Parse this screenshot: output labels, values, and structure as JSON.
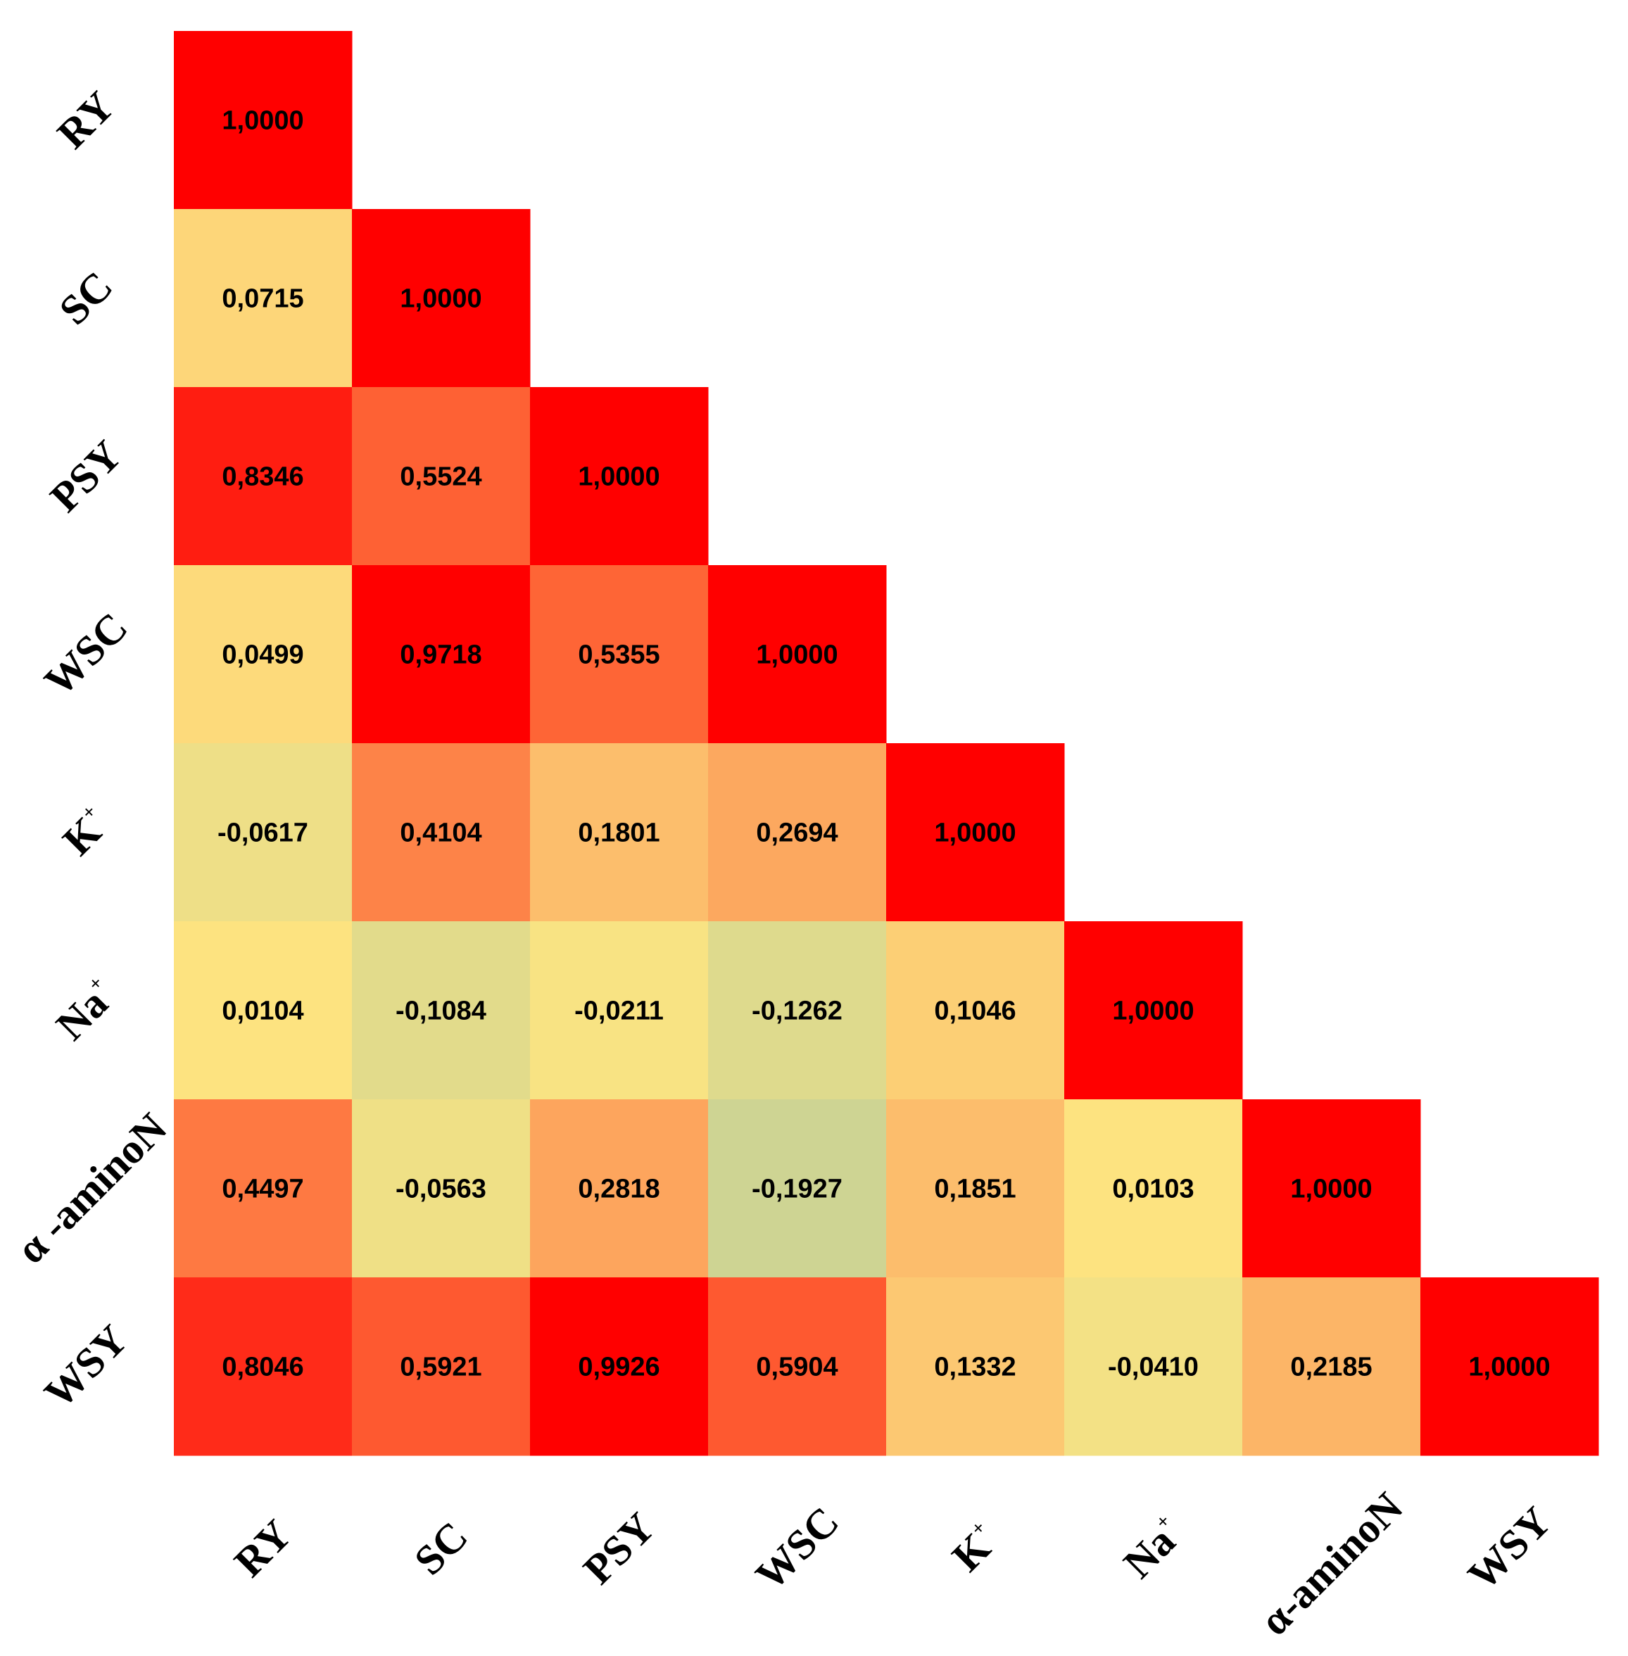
{
  "chart_data": {
    "type": "heatmap",
    "subtype": "lower-triangular correlation matrix",
    "variables": [
      {
        "base": "RY",
        "sup": ""
      },
      {
        "base": "SC",
        "sup": ""
      },
      {
        "base": "PSY",
        "sup": ""
      },
      {
        "base": "WSC",
        "sup": ""
      },
      {
        "base": "K",
        "sup": "+"
      },
      {
        "base": "Na",
        "sup": "+"
      },
      {
        "base": "α -aminoN",
        "sup": ""
      },
      {
        "base": "WSY",
        "sup": ""
      }
    ],
    "x_labels": [
      {
        "base": "RY",
        "sup": ""
      },
      {
        "base": "SC",
        "sup": ""
      },
      {
        "base": "PSY",
        "sup": ""
      },
      {
        "base": "WSC",
        "sup": ""
      },
      {
        "base": "K",
        "sup": "+"
      },
      {
        "base": "Na",
        "sup": "+"
      },
      {
        "base": "α-aminoN",
        "sup": ""
      },
      {
        "base": "WSY",
        "sup": ""
      }
    ],
    "values": [
      [
        1.0
      ],
      [
        0.0715,
        1.0
      ],
      [
        0.8346,
        0.5524,
        1.0
      ],
      [
        0.0499,
        0.9718,
        0.5355,
        1.0
      ],
      [
        -0.0617,
        0.4104,
        0.1801,
        0.2694,
        1.0
      ],
      [
        0.0104,
        -0.1084,
        -0.0211,
        -0.1262,
        0.1046,
        1.0
      ],
      [
        0.4497,
        -0.0563,
        0.2818,
        -0.1927,
        0.1851,
        0.0103,
        1.0
      ],
      [
        0.8046,
        0.5921,
        0.9926,
        0.5904,
        0.1332,
        -0.041,
        0.2185,
        1.0
      ]
    ],
    "value_labels": [
      [
        "1,0000"
      ],
      [
        "0,0715",
        "1,0000"
      ],
      [
        "0,8346",
        "0,5524",
        "1,0000"
      ],
      [
        "0,0499",
        "0,9718",
        "0,5355",
        "1,0000"
      ],
      [
        "-0,0617",
        "0,4104",
        "0,1801",
        "0,2694",
        "1,0000"
      ],
      [
        "0,0104",
        "-0,1084",
        "-0,0211",
        "-0,1262",
        "0,1046",
        "1,0000"
      ],
      [
        "0,4497",
        "-0,0563",
        "0,2818",
        "-0,1927",
        "0,1851",
        "0,0103",
        "1,0000"
      ],
      [
        "0,8046",
        "0,5921",
        "0,9926",
        "0,5904",
        "0,1332",
        "-0,0410",
        "0,2185",
        "1,0000"
      ]
    ],
    "color_scale": {
      "stops": [
        {
          "value": -0.2,
          "color": "#ccd394"
        },
        {
          "value": 0.0,
          "color": "#fde581"
        },
        {
          "value": 0.2,
          "color": "#fcba6a"
        },
        {
          "value": 0.5,
          "color": "#fe6c3a"
        },
        {
          "value": 0.8,
          "color": "#ff2d1a"
        },
        {
          "value": 0.9,
          "color": "#ff0000"
        },
        {
          "value": 1.0,
          "color": "#ff0000"
        }
      ]
    },
    "title": "",
    "legend": "none"
  }
}
